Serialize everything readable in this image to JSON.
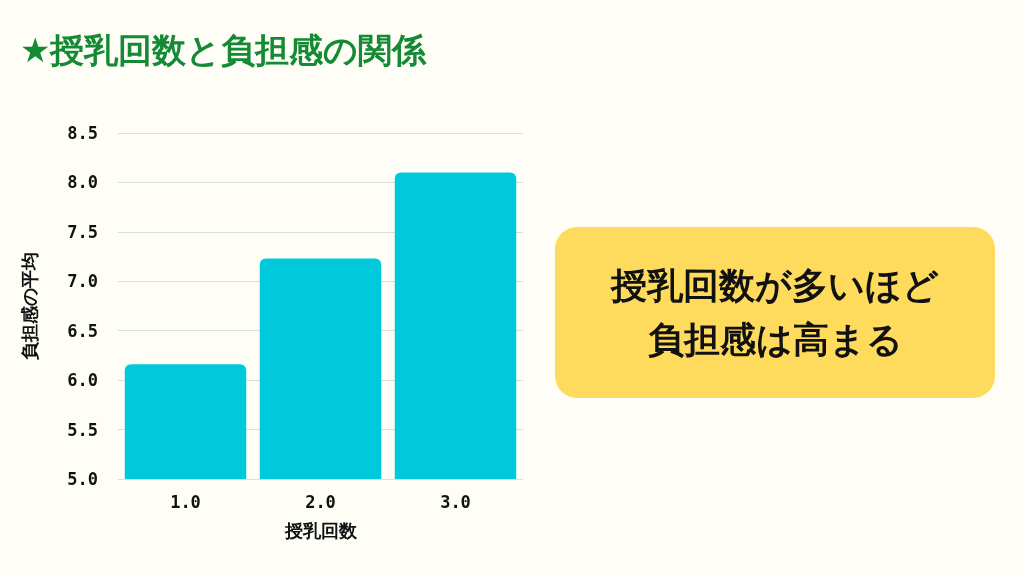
{
  "chart_data": {
    "type": "bar",
    "title": "★授乳回数と負担感の関係",
    "xlabel": "授乳回数",
    "ylabel": "負担感の平均",
    "categories": [
      "1.0",
      "2.0",
      "3.0"
    ],
    "values": [
      6.16,
      7.23,
      8.1
    ],
    "color": "#00c9db",
    "ylim": [
      5,
      8.5
    ],
    "yticks": [
      {
        "value": 5,
        "label": "5.0"
      },
      {
        "value": 5.5,
        "label": "5.5"
      },
      {
        "value": 6,
        "label": "6.0"
      },
      {
        "value": 6.5,
        "label": "6.5"
      },
      {
        "value": 7,
        "label": "7.0"
      },
      {
        "value": 7.5,
        "label": "7.5"
      },
      {
        "value": 8,
        "label": "8.0"
      },
      {
        "value": 8.5,
        "label": "8.5"
      }
    ],
    "grid": "y",
    "annotations": [
      "授乳回数が多いほど負担感は高まる"
    ]
  }
}
